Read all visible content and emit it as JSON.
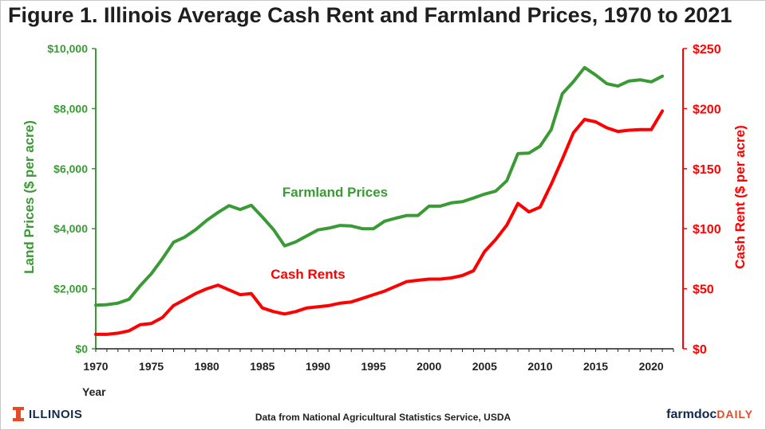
{
  "title": "Figure 1.  Illinois Average Cash Rent and Farmland Prices, 1970 to 2021",
  "source": "Data from National Agricultural Statistics Service, USDA",
  "logo_text": "ILLINOIS",
  "brand_part1": "farmdoc",
  "brand_part2": "DAILY",
  "colors": {
    "green": "#3a9a35",
    "red": "#ff0000",
    "logo_orange": "#e84a27",
    "logo_blue": "#13294b"
  },
  "chart_data": {
    "type": "line",
    "xlabel": "Year",
    "ylabel_left": "Land Prices ($ per acre)",
    "ylabel_right": "Cash Rent ($ per acre)",
    "xlim": [
      1970,
      2022
    ],
    "ylim_left": [
      0,
      10000
    ],
    "ylim_right": [
      0,
      250
    ],
    "x_ticks": [
      1970,
      1975,
      1980,
      1985,
      1990,
      1995,
      2000,
      2005,
      2010,
      2015,
      2020
    ],
    "y_left_tick_labels": [
      "$0",
      "$2,000",
      "$4,000",
      "$6,000",
      "$8,000",
      "$10,000"
    ],
    "y_left_ticks": [
      0,
      2000,
      4000,
      6000,
      8000,
      10000
    ],
    "y_right_tick_labels": [
      "$0",
      "$50",
      "$100",
      "$150",
      "$200",
      "$250"
    ],
    "y_right_ticks": [
      0,
      50,
      100,
      150,
      200,
      250
    ],
    "grid": false,
    "years": [
      1970,
      1971,
      1972,
      1973,
      1974,
      1975,
      1976,
      1977,
      1978,
      1979,
      1980,
      1981,
      1982,
      1983,
      1984,
      1985,
      1986,
      1987,
      1988,
      1989,
      1990,
      1991,
      1992,
      1993,
      1994,
      1995,
      1996,
      1997,
      1998,
      1999,
      2000,
      2001,
      2002,
      2003,
      2004,
      2005,
      2006,
      2007,
      2008,
      2009,
      2010,
      2011,
      2012,
      2013,
      2014,
      2015,
      2016,
      2017,
      2018,
      2019,
      2020,
      2021
    ],
    "series": [
      {
        "name": "Farmland Prices",
        "axis": "left",
        "color": "#3a9a35",
        "values": [
          1450,
          1470,
          1520,
          1650,
          2100,
          2500,
          3000,
          3550,
          3720,
          3970,
          4280,
          4540,
          4770,
          4640,
          4780,
          4390,
          3970,
          3430,
          3560,
          3760,
          3960,
          4020,
          4110,
          4090,
          4000,
          4000,
          4250,
          4350,
          4440,
          4440,
          4750,
          4750,
          4860,
          4900,
          5020,
          5150,
          5250,
          5600,
          6500,
          6520,
          6750,
          7300,
          8500,
          8900,
          9370,
          9120,
          8830,
          8750,
          8920,
          8960,
          8890,
          9080
        ]
      },
      {
        "name": "Cash Rents",
        "axis": "right",
        "color": "#ff0000",
        "values": [
          12,
          12,
          13,
          15,
          20,
          21,
          26,
          36,
          41,
          46,
          50,
          53,
          49,
          45,
          46,
          34,
          31,
          29,
          31,
          34,
          35,
          36,
          38,
          39,
          42,
          45,
          48,
          52,
          56,
          57,
          58,
          58,
          59,
          61,
          65,
          81,
          91,
          103,
          121,
          114,
          118,
          137,
          158,
          180,
          191,
          189,
          184,
          181,
          182,
          182.5,
          182.5,
          198
        ]
      }
    ],
    "annotations": [
      {
        "text": "Farmland Prices",
        "color": "#3a9a35"
      },
      {
        "text": "Cash Rents",
        "color": "#ff0000"
      }
    ]
  }
}
